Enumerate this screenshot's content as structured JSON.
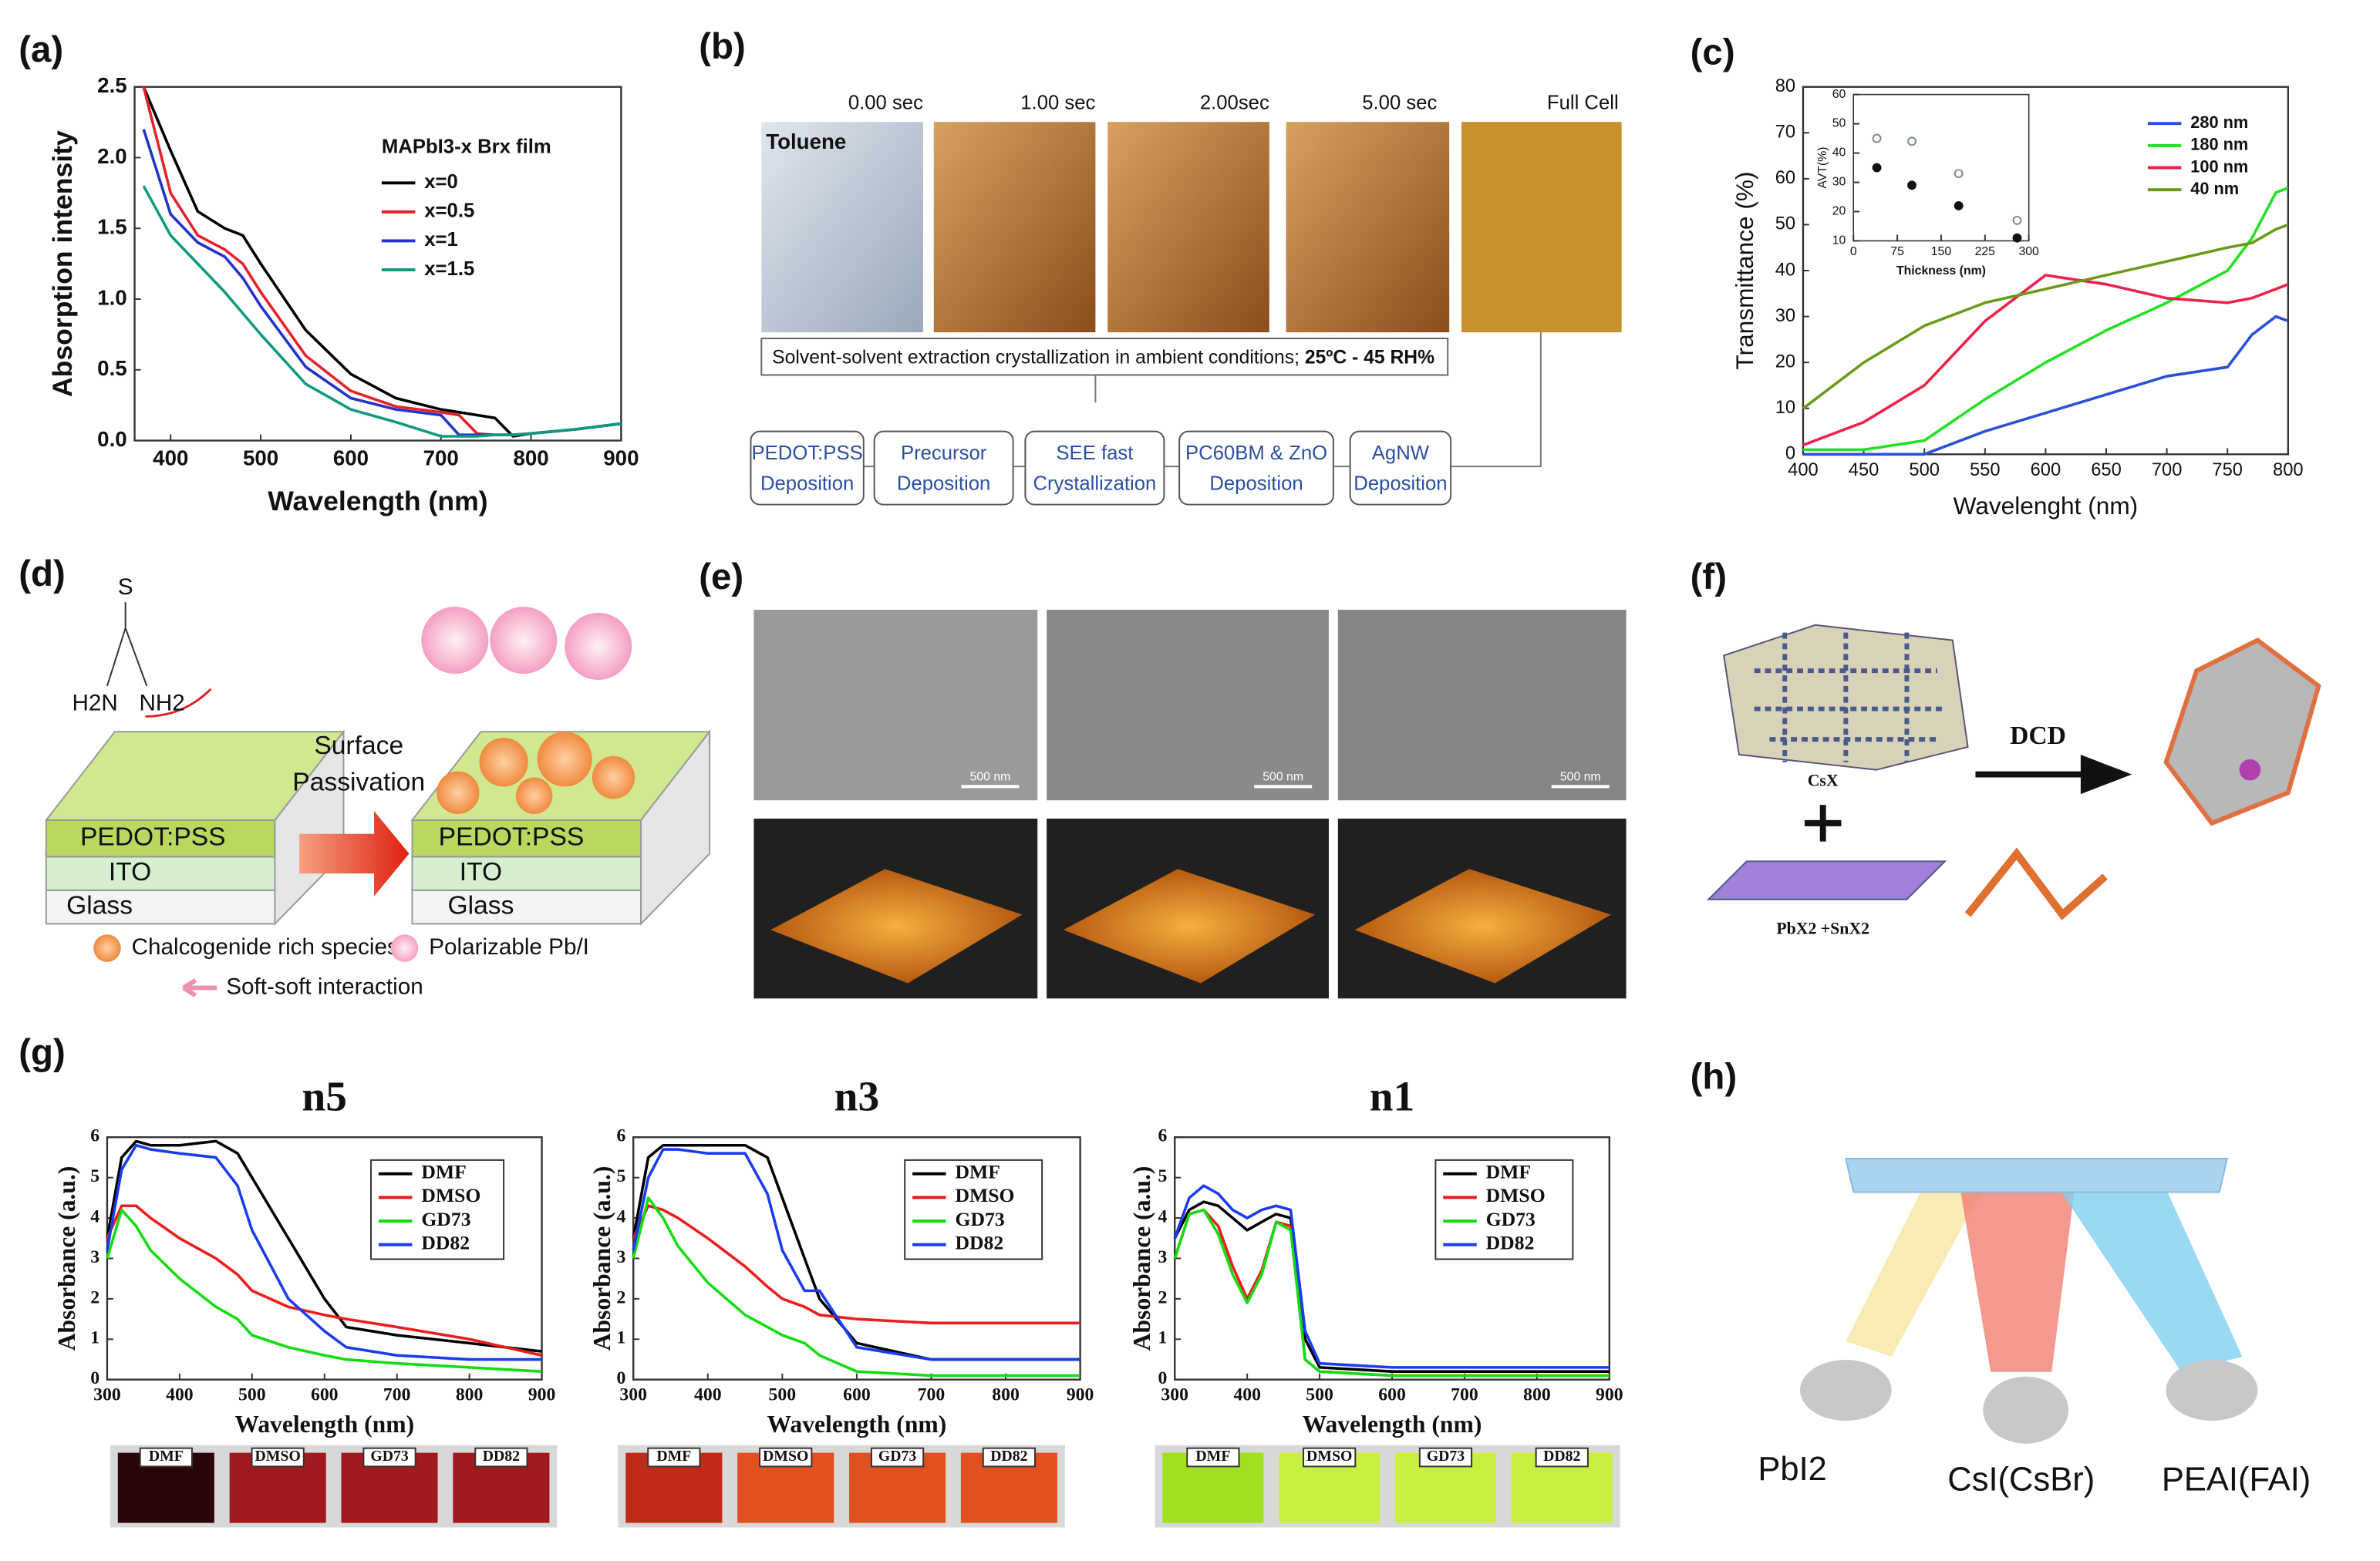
{
  "panel_labels": [
    "(a)",
    "(b)",
    "(c)",
    "(d)",
    "(e)",
    "(f)",
    "(g)",
    "(h)"
  ],
  "chart_data": [
    {
      "type": "line",
      "xlabel": "Wavelength (nm)",
      "ylabel": "Absorption intensity",
      "legend_title": "MAPbI3-x Brx film",
      "xlim": [
        360,
        900
      ],
      "ylim": [
        0,
        2.5
      ],
      "xticks": [
        400,
        500,
        600,
        700,
        800,
        900
      ],
      "yticks": [
        {
          "value": 0,
          "label": "0.0"
        },
        {
          "value": 0.5,
          "label": "0.5"
        },
        {
          "value": 1,
          "label": "1.0"
        },
        {
          "value": 1.5,
          "label": "1.5"
        },
        {
          "value": 2,
          "label": "2.0"
        },
        {
          "value": 2.5,
          "label": "2.5"
        }
      ],
      "x": [
        370,
        400,
        430,
        460,
        480,
        500,
        550,
        600,
        650,
        700,
        720,
        740,
        760,
        780,
        800,
        850,
        900
      ],
      "series": [
        {
          "name": "x=0",
          "color": "#000000",
          "values": [
            2.5,
            2.05,
            1.62,
            1.5,
            1.45,
            1.25,
            0.78,
            0.47,
            0.3,
            0.22,
            0.2,
            0.18,
            0.16,
            0.03,
            0.05,
            0.08,
            0.12
          ]
        },
        {
          "name": "x=0.5",
          "color": "#e8202a",
          "values": [
            2.5,
            1.75,
            1.45,
            1.35,
            1.25,
            1.05,
            0.6,
            0.35,
            0.24,
            0.2,
            0.18,
            0.05,
            0.04,
            0.04,
            0.05,
            0.08,
            0.12
          ]
        },
        {
          "name": "x=1",
          "color": "#2234c8",
          "values": [
            2.2,
            1.6,
            1.4,
            1.3,
            1.15,
            0.95,
            0.52,
            0.3,
            0.22,
            0.18,
            0.04,
            0.04,
            0.04,
            0.04,
            0.05,
            0.08,
            0.12
          ]
        },
        {
          "name": "x=1.5",
          "color": "#0f9a7e",
          "values": [
            1.8,
            1.45,
            1.25,
            1.05,
            0.9,
            0.75,
            0.4,
            0.22,
            0.13,
            0.03,
            0.03,
            0.03,
            0.04,
            0.04,
            0.05,
            0.08,
            0.12
          ]
        }
      ]
    },
    {
      "type": "line",
      "xlabel": "Wavelenght (nm)",
      "ylabel": "Transmittance (%)",
      "xlim": [
        400,
        800
      ],
      "ylim": [
        0,
        80
      ],
      "xticks": [
        400,
        450,
        500,
        550,
        600,
        650,
        700,
        750,
        800
      ],
      "yticks": [
        0,
        10,
        20,
        30,
        40,
        50,
        60,
        70,
        80
      ],
      "x": [
        400,
        450,
        500,
        550,
        600,
        650,
        700,
        750,
        770,
        790,
        800
      ],
      "series": [
        {
          "name": "280 nm",
          "color": "#2b4fd8",
          "values": [
            0,
            0,
            0,
            5,
            9,
            13,
            17,
            19,
            26,
            30,
            29
          ]
        },
        {
          "name": "180 nm",
          "color": "#22e022",
          "values": [
            1,
            1,
            3,
            12,
            20,
            27,
            33,
            40,
            47,
            57,
            58
          ]
        },
        {
          "name": "100 nm",
          "color": "#f0204a",
          "values": [
            2,
            7,
            15,
            29,
            39,
            37,
            34,
            33,
            34,
            36,
            37
          ]
        },
        {
          "name": "40 nm",
          "color": "#6a9a1a",
          "values": [
            10,
            20,
            28,
            33,
            36,
            39,
            42,
            45,
            46,
            49,
            50
          ]
        }
      ]
    },
    {
      "type": "scatter",
      "xlabel": "Thickness (nm)",
      "ylabel": "AVT(%)",
      "xlim": [
        0,
        300
      ],
      "ylim": [
        10,
        60
      ],
      "xticks": [
        0,
        75,
        150,
        225,
        300
      ],
      "yticks": [
        10,
        20,
        30,
        40,
        50,
        60
      ],
      "x": [
        40,
        100,
        180,
        280
      ],
      "series": [
        {
          "color": "#7a8a9a",
          "marker": "open",
          "values": [
            45,
            44,
            33,
            17
          ]
        },
        {
          "color": "#111111",
          "marker": "filled",
          "values": [
            35,
            29,
            22,
            11
          ]
        }
      ]
    },
    {
      "type": "line",
      "title": "n5",
      "xlabel": "Wavelength (nm)",
      "ylabel": "Absorbance (a.u.)",
      "xlim": [
        300,
        900
      ],
      "ylim": [
        0,
        6
      ],
      "xticks": [
        300,
        400,
        500,
        600,
        700,
        800,
        900
      ],
      "yticks": [
        0,
        1,
        2,
        3,
        4,
        5,
        6
      ],
      "x": [
        300,
        320,
        340,
        360,
        400,
        450,
        480,
        500,
        550,
        600,
        630,
        700,
        800,
        900
      ],
      "series": [
        {
          "name": "DMF",
          "color": "#000000",
          "values": [
            3.5,
            5.5,
            5.9,
            5.8,
            5.8,
            5.9,
            5.6,
            5.0,
            3.5,
            2.0,
            1.3,
            1.1,
            0.9,
            0.7
          ]
        },
        {
          "name": "DMSO",
          "color": "#ee1c1c",
          "values": [
            3.5,
            4.3,
            4.3,
            4.0,
            3.5,
            3.0,
            2.6,
            2.2,
            1.8,
            1.6,
            1.5,
            1.3,
            1.0,
            0.6
          ]
        },
        {
          "name": "GD73",
          "color": "#11dd11",
          "values": [
            3.0,
            4.2,
            3.8,
            3.2,
            2.5,
            1.8,
            1.5,
            1.1,
            0.8,
            0.6,
            0.5,
            0.4,
            0.3,
            0.2
          ]
        },
        {
          "name": "DD82",
          "color": "#1a3cf0",
          "values": [
            3.2,
            5.2,
            5.8,
            5.7,
            5.6,
            5.5,
            4.8,
            3.7,
            2.0,
            1.2,
            0.8,
            0.6,
            0.5,
            0.5
          ]
        }
      ]
    },
    {
      "type": "line",
      "title": "n3",
      "xlabel": "Wavelength (nm)",
      "ylabel": "Absorbance (a.u.)",
      "xlim": [
        300,
        900
      ],
      "ylim": [
        0,
        6
      ],
      "xticks": [
        300,
        400,
        500,
        600,
        700,
        800,
        900
      ],
      "yticks": [
        0,
        1,
        2,
        3,
        4,
        5,
        6
      ],
      "x": [
        300,
        320,
        340,
        360,
        400,
        450,
        480,
        500,
        530,
        550,
        600,
        700,
        800,
        900
      ],
      "series": [
        {
          "name": "DMF",
          "color": "#000000",
          "values": [
            3.5,
            5.5,
            5.8,
            5.8,
            5.8,
            5.8,
            5.5,
            4.5,
            3.0,
            2.0,
            0.9,
            0.5,
            0.5,
            0.5
          ]
        },
        {
          "name": "DMSO",
          "color": "#ee1c1c",
          "values": [
            3.5,
            4.3,
            4.2,
            4.0,
            3.5,
            2.8,
            2.3,
            2.0,
            1.8,
            1.6,
            1.5,
            1.4,
            1.4,
            1.4
          ]
        },
        {
          "name": "GD73",
          "color": "#11dd11",
          "values": [
            3.0,
            4.5,
            4.0,
            3.3,
            2.4,
            1.6,
            1.3,
            1.1,
            0.9,
            0.6,
            0.2,
            0.1,
            0.1,
            0.1
          ]
        },
        {
          "name": "DD82",
          "color": "#1a3cf0",
          "values": [
            3.2,
            5.0,
            5.7,
            5.7,
            5.6,
            5.6,
            4.6,
            3.2,
            2.2,
            2.2,
            0.8,
            0.5,
            0.5,
            0.5
          ]
        }
      ]
    },
    {
      "type": "line",
      "title": "n1",
      "xlabel": "Wavelength (nm)",
      "ylabel": "Absorbance (a.u.)",
      "xlim": [
        300,
        900
      ],
      "ylim": [
        0,
        6
      ],
      "xticks": [
        300,
        400,
        500,
        600,
        700,
        800,
        900
      ],
      "yticks": [
        0,
        1,
        2,
        3,
        4,
        5,
        6
      ],
      "x": [
        300,
        320,
        340,
        360,
        380,
        400,
        420,
        440,
        460,
        480,
        500,
        600,
        700,
        800,
        900
      ],
      "series": [
        {
          "name": "DMF",
          "color": "#000000",
          "values": [
            3.5,
            4.2,
            4.4,
            4.3,
            4.0,
            3.7,
            3.9,
            4.1,
            4.0,
            1.0,
            0.3,
            0.2,
            0.2,
            0.2,
            0.2
          ]
        },
        {
          "name": "DMSO",
          "color": "#ee1c1c",
          "values": [
            3.0,
            4.1,
            4.2,
            3.8,
            2.8,
            2.0,
            2.7,
            3.9,
            3.8,
            0.5,
            0.2,
            0.1,
            0.1,
            0.1,
            0.1
          ]
        },
        {
          "name": "GD73",
          "color": "#11dd11",
          "values": [
            3.0,
            4.1,
            4.2,
            3.6,
            2.6,
            1.9,
            2.6,
            3.9,
            3.7,
            0.5,
            0.2,
            0.1,
            0.1,
            0.1,
            0.1
          ]
        },
        {
          "name": "DD82",
          "color": "#1a3cf0",
          "values": [
            3.5,
            4.5,
            4.8,
            4.6,
            4.2,
            4.0,
            4.2,
            4.3,
            4.2,
            1.2,
            0.4,
            0.3,
            0.3,
            0.3,
            0.3
          ]
        }
      ]
    }
  ],
  "panel_b": {
    "times": [
      "0.00 sec",
      "1.00 sec",
      "2.00sec",
      "5.00 sec",
      "Full Cell"
    ],
    "solvent": "Toluene",
    "caption": "Solvent-solvent extraction crystallization in ambient conditions;",
    "conditions": "25ºC - 45 RH%",
    "steps": [
      [
        "PEDOT:PSS",
        "Deposition"
      ],
      [
        "Precursor",
        "Deposition"
      ],
      [
        "SEE fast",
        "Crystallization"
      ],
      [
        "PC60BM & ZnO",
        "Deposition"
      ],
      [
        "AgNW",
        "Deposition"
      ]
    ]
  },
  "panel_d": {
    "atom": "S",
    "left_group": "H2N",
    "right_group": "NH2",
    "process": [
      "Surface",
      "Passivation"
    ],
    "layers": [
      "PEDOT:PSS",
      "ITO",
      "Glass"
    ],
    "legend": [
      "Chalcogenide rich species",
      "Polarizable Pb/I",
      "Soft-soft interaction"
    ]
  },
  "panel_e": {
    "scale_bars": [
      "500 nm",
      "500 nm",
      "500 nm"
    ]
  },
  "panel_f": {
    "top": "CsX",
    "bottom": "PbX2 +SnX2",
    "arrow": "DCD"
  },
  "panel_g_photos": [
    [
      "DMF",
      "DMSO",
      "GD73",
      "DD82"
    ],
    [
      "DMF",
      "DMSO",
      "GD73",
      "DD82"
    ],
    [
      "DMF",
      "DMSO",
      "GD73",
      "DD82"
    ]
  ],
  "panel_h": {
    "sources": [
      "PbI2",
      "CsI(CsBr)",
      "PEAI(FAI)"
    ]
  }
}
